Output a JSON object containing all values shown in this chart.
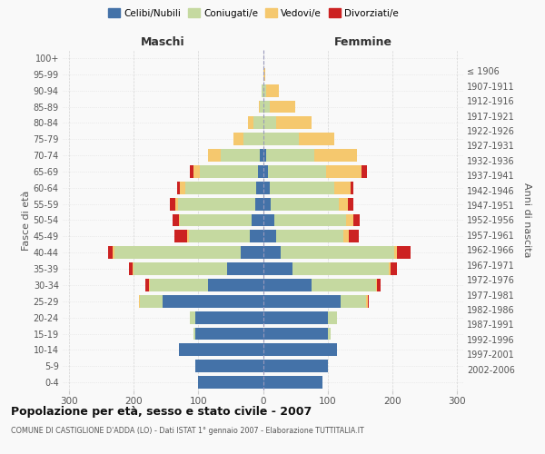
{
  "age_groups": [
    "0-4",
    "5-9",
    "10-14",
    "15-19",
    "20-24",
    "25-29",
    "30-34",
    "35-39",
    "40-44",
    "45-49",
    "50-54",
    "55-59",
    "60-64",
    "65-69",
    "70-74",
    "75-79",
    "80-84",
    "85-89",
    "90-94",
    "95-99",
    "100+"
  ],
  "birth_years": [
    "2002-2006",
    "1997-2001",
    "1992-1996",
    "1987-1991",
    "1982-1986",
    "1977-1981",
    "1972-1976",
    "1967-1971",
    "1962-1966",
    "1957-1961",
    "1952-1956",
    "1947-1951",
    "1942-1946",
    "1937-1941",
    "1932-1936",
    "1927-1931",
    "1922-1926",
    "1917-1921",
    "1912-1916",
    "1907-1911",
    "≤ 1906"
  ],
  "male": {
    "celibi": [
      100,
      105,
      130,
      105,
      105,
      155,
      85,
      55,
      35,
      20,
      18,
      12,
      10,
      8,
      5,
      0,
      0,
      0,
      0,
      0,
      0
    ],
    "coniugati": [
      0,
      0,
      0,
      2,
      8,
      35,
      90,
      145,
      195,
      95,
      110,
      120,
      110,
      90,
      60,
      30,
      15,
      5,
      2,
      0,
      0
    ],
    "vedovi": [
      0,
      0,
      0,
      0,
      0,
      2,
      2,
      2,
      2,
      2,
      2,
      4,
      8,
      10,
      20,
      15,
      8,
      2,
      0,
      0,
      0
    ],
    "divorziati": [
      0,
      0,
      0,
      0,
      0,
      0,
      5,
      5,
      8,
      20,
      10,
      8,
      5,
      5,
      0,
      0,
      0,
      0,
      0,
      0,
      0
    ]
  },
  "female": {
    "nubili": [
      92,
      100,
      115,
      100,
      100,
      120,
      75,
      45,
      28,
      20,
      18,
      12,
      10,
      8,
      5,
      0,
      0,
      0,
      0,
      0,
      0
    ],
    "coniugate": [
      0,
      0,
      0,
      5,
      15,
      40,
      100,
      150,
      175,
      105,
      110,
      105,
      100,
      90,
      75,
      55,
      20,
      10,
      5,
      1,
      0
    ],
    "vedove": [
      0,
      0,
      0,
      0,
      0,
      2,
      2,
      3,
      5,
      8,
      12,
      15,
      25,
      55,
      65,
      55,
      55,
      40,
      20,
      2,
      0
    ],
    "divorziate": [
      0,
      0,
      0,
      0,
      0,
      2,
      5,
      10,
      20,
      15,
      10,
      8,
      5,
      8,
      0,
      0,
      0,
      0,
      0,
      0,
      0
    ]
  },
  "colors": {
    "celibi": "#4472a8",
    "coniugati": "#c5d9a0",
    "vedovi": "#f5c86e",
    "divorziati": "#cc2222"
  },
  "title": "Popolazione per età, sesso e stato civile - 2007",
  "subtitle": "COMUNE DI CASTIGLIONE D'ADDA (LO) - Dati ISTAT 1° gennaio 2007 - Elaborazione TUTTITALIA.IT",
  "xlabel_left": "Maschi",
  "xlabel_right": "Femmine",
  "ylabel_left": "Fasce di età",
  "ylabel_right": "Anni di nascita",
  "xlim": 310,
  "xticks": [
    -300,
    -200,
    -100,
    0,
    100,
    200,
    300
  ],
  "xticklabels": [
    "300",
    "200",
    "100",
    "0",
    "100",
    "200",
    "300"
  ],
  "background_color": "#f9f9f9",
  "grid_color": "#cccccc",
  "bar_height": 0.78
}
